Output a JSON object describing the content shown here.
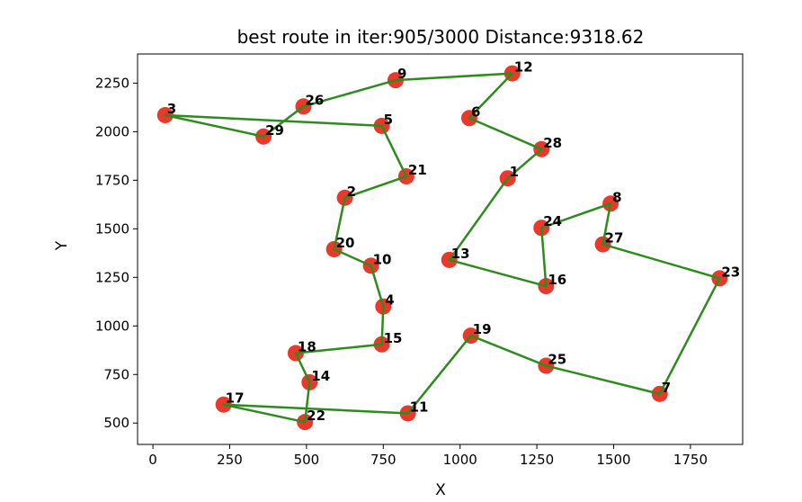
{
  "chart_data": {
    "type": "scatter",
    "title": "best route in iter:905/3000 Distance:9318.62",
    "xlabel": "X",
    "ylabel": "Y",
    "xlim": [
      -50,
      1920
    ],
    "ylim": [
      390,
      2400
    ],
    "xticks": [
      0,
      250,
      500,
      750,
      1000,
      1250,
      1500,
      1750
    ],
    "yticks": [
      500,
      750,
      1000,
      1250,
      1500,
      1750,
      2000,
      2250
    ],
    "colors": {
      "route": "#2e8b1e",
      "point": "#e8392b",
      "axes": "#000000"
    },
    "points": [
      {
        "label": "1",
        "x": 1155,
        "y": 1760
      },
      {
        "label": "2",
        "x": 625,
        "y": 1660
      },
      {
        "label": "3",
        "x": 40,
        "y": 2085
      },
      {
        "label": "4",
        "x": 750,
        "y": 1100
      },
      {
        "label": "5",
        "x": 745,
        "y": 2030
      },
      {
        "label": "6",
        "x": 1030,
        "y": 2070
      },
      {
        "label": "7",
        "x": 1650,
        "y": 650
      },
      {
        "label": "8",
        "x": 1490,
        "y": 1630
      },
      {
        "label": "9",
        "x": 790,
        "y": 2265
      },
      {
        "label": "10",
        "x": 710,
        "y": 1310
      },
      {
        "label": "11",
        "x": 830,
        "y": 550
      },
      {
        "label": "12",
        "x": 1170,
        "y": 2300
      },
      {
        "label": "13",
        "x": 965,
        "y": 1340
      },
      {
        "label": "14",
        "x": 510,
        "y": 710
      },
      {
        "label": "15",
        "x": 745,
        "y": 905
      },
      {
        "label": "16",
        "x": 1280,
        "y": 1205
      },
      {
        "label": "17",
        "x": 230,
        "y": 595
      },
      {
        "label": "18",
        "x": 465,
        "y": 860
      },
      {
        "label": "19",
        "x": 1035,
        "y": 950
      },
      {
        "label": "20",
        "x": 590,
        "y": 1395
      },
      {
        "label": "21",
        "x": 825,
        "y": 1770
      },
      {
        "label": "22",
        "x": 495,
        "y": 505
      },
      {
        "label": "23",
        "x": 1845,
        "y": 1245
      },
      {
        "label": "24",
        "x": 1265,
        "y": 1505
      },
      {
        "label": "25",
        "x": 1280,
        "y": 795
      },
      {
        "label": "26",
        "x": 490,
        "y": 2130
      },
      {
        "label": "27",
        "x": 1465,
        "y": 1420
      },
      {
        "label": "28",
        "x": 1265,
        "y": 1910
      },
      {
        "label": "29",
        "x": 360,
        "y": 1975
      }
    ],
    "route": [
      "3",
      "5",
      "21",
      "2",
      "20",
      "10",
      "4",
      "15",
      "18",
      "14",
      "22",
      "17",
      "11",
      "19",
      "25",
      "7",
      "23",
      "27",
      "8",
      "24",
      "16",
      "13",
      "1",
      "28",
      "6",
      "12",
      "9",
      "26",
      "29",
      "3"
    ]
  }
}
